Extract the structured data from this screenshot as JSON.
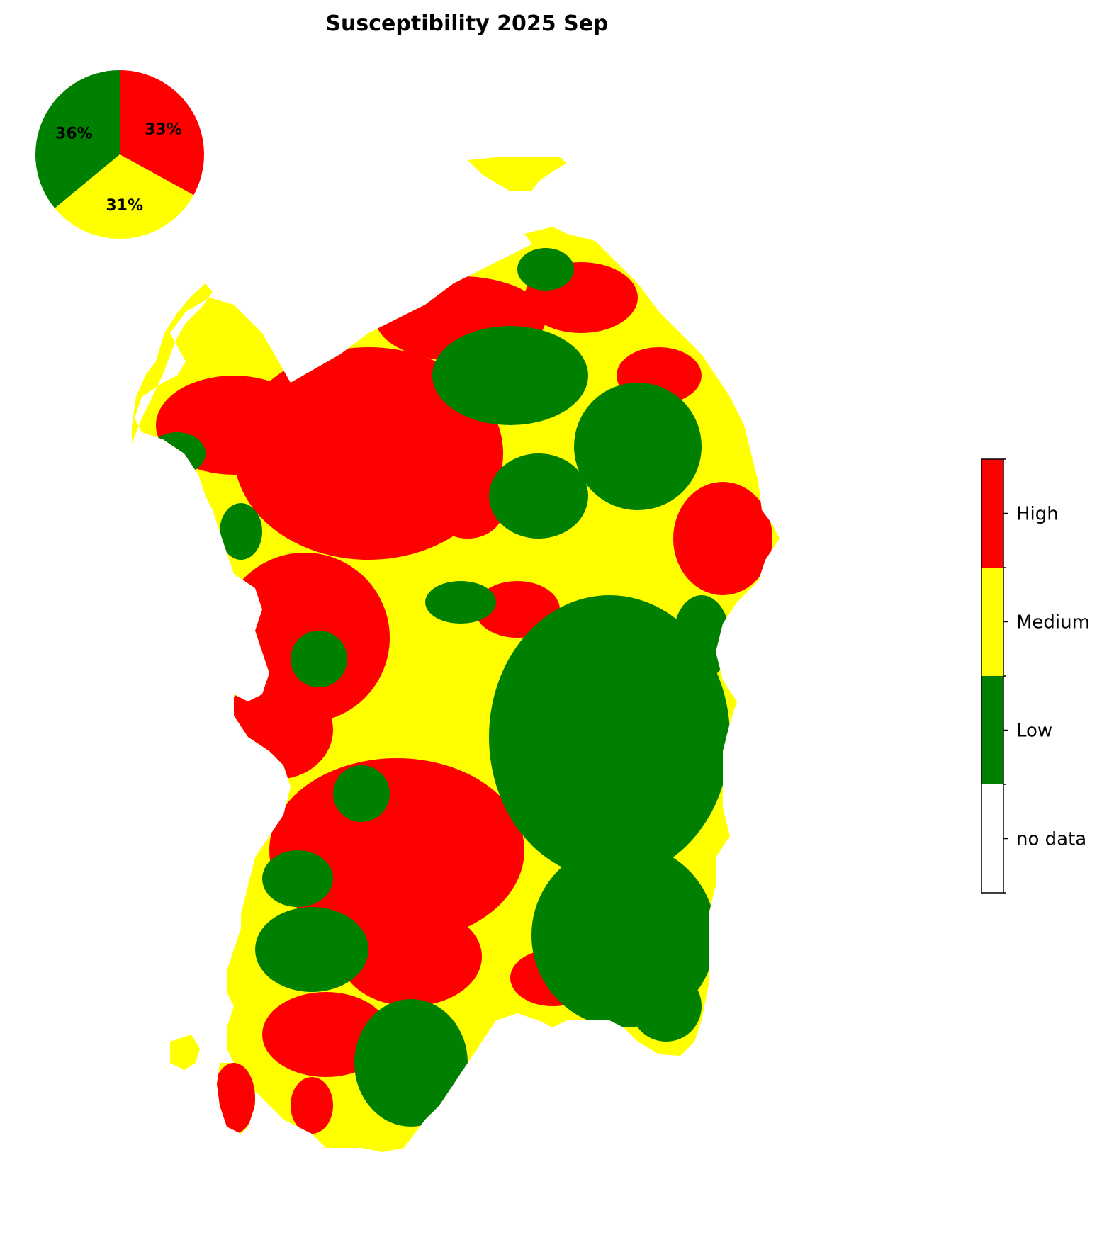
{
  "title": "Susceptibility 2025 Sep",
  "colors": {
    "high": "#ff0000",
    "medium": "#ffff00",
    "low": "#008000",
    "no_data": "#ffffff"
  },
  "pie": {
    "slices": [
      {
        "key": "high",
        "percent": 33,
        "label": "33%"
      },
      {
        "key": "medium",
        "percent": 31,
        "label": "31%"
      },
      {
        "key": "low",
        "percent": 36,
        "label": "36%"
      }
    ]
  },
  "colorbar": {
    "entries": [
      {
        "key": "high",
        "label": "High"
      },
      {
        "key": "medium",
        "label": "Medium"
      },
      {
        "key": "low",
        "label": "Low"
      },
      {
        "key": "no_data",
        "label": "no data"
      }
    ]
  }
}
